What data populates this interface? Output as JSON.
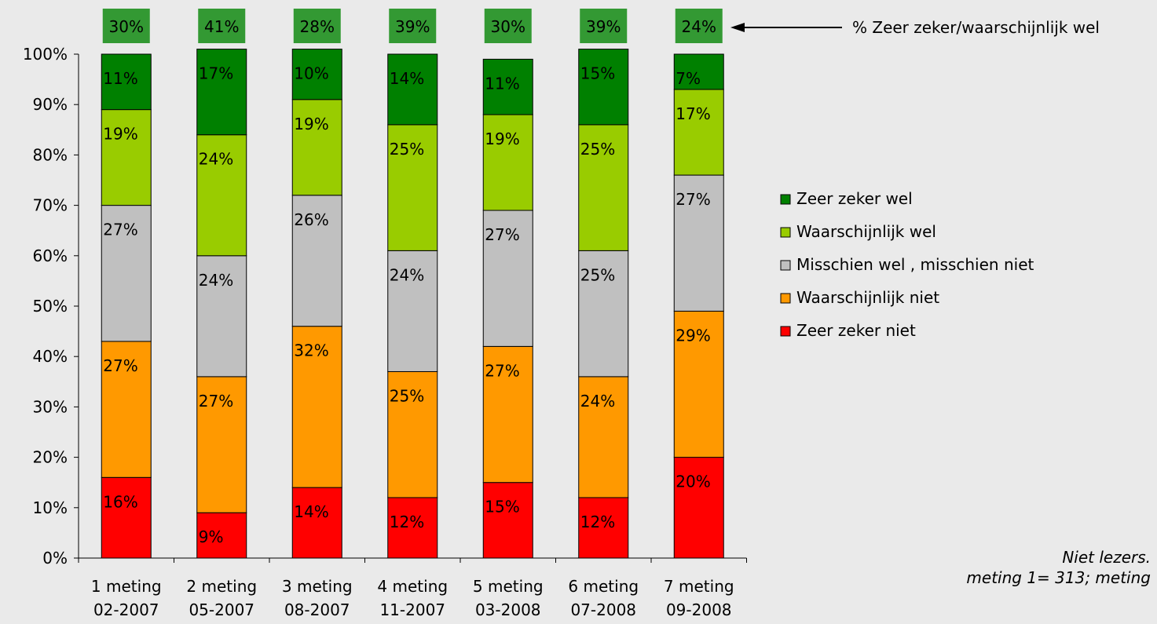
{
  "chart_data": {
    "type": "bar",
    "stacked": true,
    "categories": [
      [
        "1 meting",
        "02-2007"
      ],
      [
        "2 meting",
        "05-2007"
      ],
      [
        "3 meting",
        "08-2007"
      ],
      [
        "4 meting",
        "11-2007"
      ],
      [
        "5 meting",
        "03-2008"
      ],
      [
        "6 meting",
        "07-2008"
      ],
      [
        "7 meting",
        "09-2008"
      ]
    ],
    "ylim": [
      0,
      100
    ],
    "yticks": [
      "0%",
      "10%",
      "20%",
      "30%",
      "40%",
      "50%",
      "60%",
      "70%",
      "80%",
      "90%",
      "100%"
    ],
    "series": [
      {
        "name": "Zeer zeker niet",
        "color": "#ff0000",
        "values": [
          16,
          9,
          14,
          12,
          15,
          12,
          20
        ],
        "display": [
          16,
          9,
          14,
          12,
          15,
          12,
          20
        ]
      },
      {
        "name": "Waarschijnlijk niet",
        "color": "#ff9900",
        "values": [
          27,
          27,
          32,
          25,
          27,
          24,
          29
        ],
        "display": [
          27,
          27,
          32,
          25,
          27,
          24,
          29
        ]
      },
      {
        "name": "Misschien wel , misschien niet",
        "color": "#c0c0c0",
        "values": [
          27,
          24,
          26,
          24,
          27,
          25,
          27
        ],
        "display": [
          27,
          24,
          26,
          24,
          27,
          25,
          27
        ]
      },
      {
        "name": "Waarschijnlijk wel",
        "color": "#99cc00",
        "values": [
          19,
          24,
          19,
          25,
          19,
          25,
          17
        ],
        "display": [
          19,
          24,
          19,
          25,
          19,
          25,
          17
        ]
      },
      {
        "name": "Zeer zeker wel",
        "color": "#008000",
        "values": [
          11,
          17,
          10,
          14,
          11,
          15,
          7
        ],
        "display": [
          11,
          17,
          10,
          14,
          11,
          15,
          7
        ]
      }
    ],
    "legend_order": [
      "Zeer zeker wel",
      "Waarschijnlijk wel",
      "Misschien wel , misschien niet",
      "Waarschijnlijk niet",
      "Zeer zeker niet"
    ],
    "legend_position": "right",
    "top_boxes": {
      "values": [
        "30%",
        "41%",
        "28%",
        "39%",
        "30%",
        "39%",
        "24%"
      ],
      "color": "#339933",
      "annotation": "% Zeer zeker/waarschijnlijk wel"
    }
  },
  "footnote": {
    "line1": "Niet lezers.",
    "line2": "meting 1= 313; meting"
  }
}
